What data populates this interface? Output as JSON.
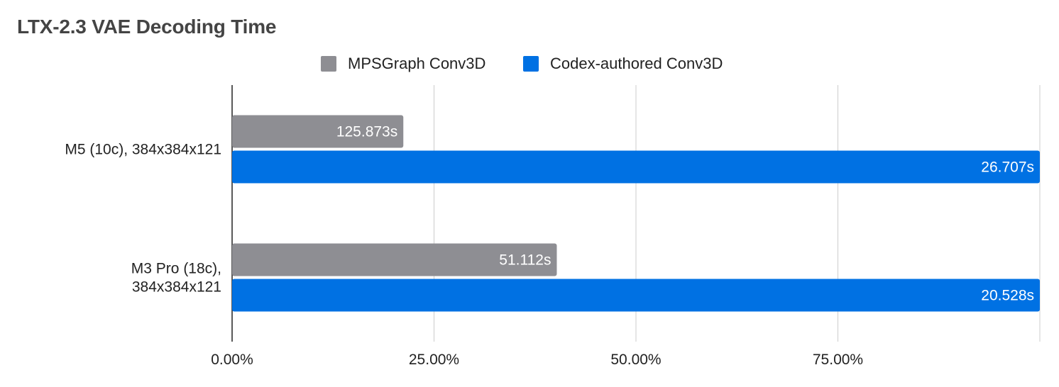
{
  "chart_data": {
    "type": "bar",
    "orientation": "horizontal",
    "title": "LTX-2.3 VAE Decoding Time",
    "categories": [
      [
        "M5 (10c), 384x384x121"
      ],
      [
        "M3 Pro (18c),",
        "384x384x121"
      ]
    ],
    "series": [
      {
        "name": "MPSGraph Conv3D",
        "color": "#8e8e93",
        "values": [
          21.2,
          40.2
        ],
        "labels": [
          "125.873s",
          "51.112s"
        ]
      },
      {
        "name": "Codex-authored Conv3D",
        "color": "#0071e3",
        "values": [
          100,
          100
        ],
        "labels": [
          "26.707s",
          "20.528s"
        ]
      }
    ],
    "x_ticks": [
      "0.00%",
      "25.00%",
      "50.00%",
      "75.00%"
    ],
    "xlim": [
      0,
      100
    ],
    "grid": true,
    "legend_position": "top"
  }
}
